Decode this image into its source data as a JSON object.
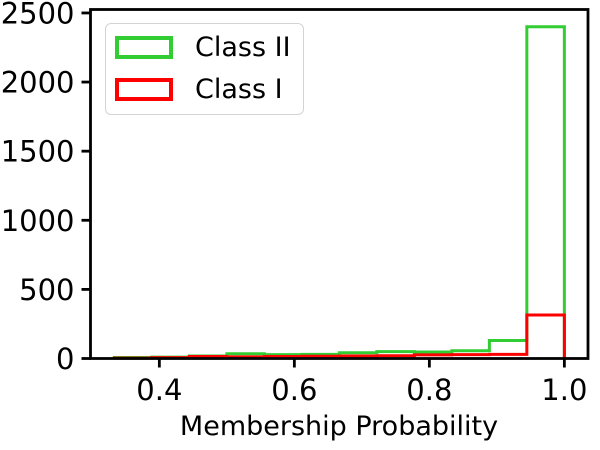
{
  "chart_data": {
    "type": "bar",
    "subtype": "step-histogram",
    "title": "",
    "xlabel": "Membership Probability",
    "ylabel": "",
    "bin_edges": [
      0.3333,
      0.3889,
      0.4444,
      0.5,
      0.5556,
      0.6111,
      0.6667,
      0.7222,
      0.7778,
      0.8333,
      0.8889,
      0.9444,
      1.0
    ],
    "series": [
      {
        "name": "Class II",
        "color": "#32CD32",
        "counts": [
          7,
          10,
          18,
          34,
          28,
          30,
          42,
          50,
          47,
          56,
          130,
          2400
        ]
      },
      {
        "name": "Class I",
        "color": "#FF0000",
        "counts": [
          3,
          6,
          14,
          12,
          14,
          16,
          18,
          20,
          26,
          28,
          30,
          315
        ]
      }
    ],
    "axes": {
      "xlim": [
        0.298,
        1.035
      ],
      "ylim": [
        0,
        2525
      ],
      "xticks": [
        0.4,
        0.6,
        0.8,
        1.0
      ],
      "xtick_labels": [
        "0.4",
        "0.6",
        "0.8",
        "1.0"
      ],
      "yticks": [
        0,
        500,
        1000,
        1500,
        2000,
        2500
      ],
      "ytick_labels": [
        "0",
        "500",
        "1000",
        "1500",
        "2000",
        "2500"
      ],
      "grid": false
    },
    "legend": {
      "position": "upper-left",
      "entries": [
        "Class II",
        "Class I"
      ]
    },
    "style": {
      "line_width": 3,
      "spine_width": 2.8,
      "tick_length": 9,
      "spine_color": "#000000",
      "background": "#ffffff"
    }
  }
}
